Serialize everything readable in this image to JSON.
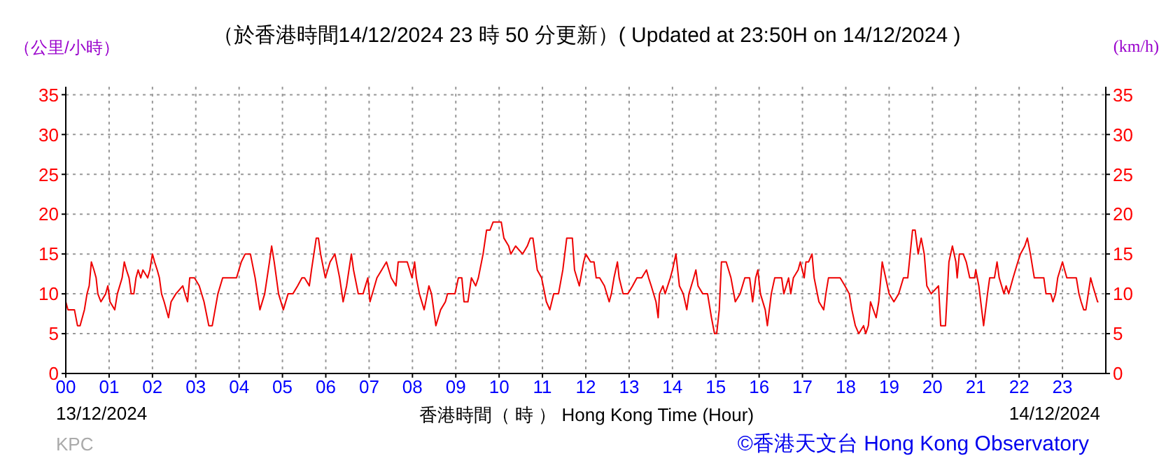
{
  "chart_data": {
    "type": "line",
    "title": "（於香港時間14/12/2024 23 時 50 分更新）( Updated at 23:50H on 14/12/2024 )",
    "ylabel": "（公里/小時）",
    "y2label": "(km/h)",
    "xlabel": "香港時間（ 時 ） Hong Kong Time (Hour)",
    "annotations": [
      "13/12/2024",
      "14/12/2024",
      "KPC",
      "©香港天文台 Hong Kong Observatory"
    ],
    "x": [
      0,
      0.05,
      0.2,
      0.27,
      0.33,
      0.43,
      0.49,
      0.54,
      0.59,
      0.65,
      0.7,
      0.74,
      0.81,
      0.92,
      0.97,
      1.02,
      1.13,
      1.19,
      1.3,
      1.35,
      1.4,
      1.46,
      1.51,
      1.57,
      1.62,
      1.67,
      1.73,
      1.78,
      1.89,
      1.94,
      2.0,
      2.05,
      2.11,
      2.16,
      2.21,
      2.27,
      2.37,
      2.43,
      2.54,
      2.7,
      2.75,
      2.81,
      2.86,
      2.97,
      3.08,
      3.19,
      3.3,
      3.38,
      3.51,
      3.62,
      3.78,
      3.94,
      4.05,
      4.14,
      4.26,
      4.37,
      4.48,
      4.59,
      4.7,
      4.75,
      4.81,
      4.91,
      5.02,
      5.13,
      5.24,
      5.35,
      5.45,
      5.51,
      5.62,
      5.67,
      5.78,
      5.83,
      5.88,
      5.99,
      6.1,
      6.21,
      6.32,
      6.4,
      6.48,
      6.59,
      6.64,
      6.75,
      6.86,
      6.97,
      7.02,
      7.18,
      7.29,
      7.4,
      7.51,
      7.62,
      7.67,
      7.88,
      7.99,
      8.05,
      8.09,
      8.16,
      8.27,
      8.38,
      8.44,
      8.54,
      8.65,
      8.76,
      8.81,
      8.98,
      9.06,
      9.14,
      9.19,
      9.28,
      9.36,
      9.46,
      9.52,
      9.63,
      9.71,
      9.79,
      9.86,
      10.05,
      10.11,
      10.22,
      10.27,
      10.38,
      10.54,
      10.65,
      10.72,
      10.78,
      10.88,
      10.98,
      11.09,
      11.17,
      11.26,
      11.37,
      11.47,
      11.56,
      11.69,
      11.74,
      11.85,
      11.95,
      12.0,
      12.11,
      12.19,
      12.24,
      12.32,
      12.43,
      12.54,
      12.59,
      12.65,
      12.73,
      12.77,
      12.86,
      12.97,
      13.08,
      13.18,
      13.29,
      13.4,
      13.45,
      13.51,
      13.62,
      13.67,
      13.7,
      13.78,
      13.83,
      13.95,
      14.0,
      14.08,
      14.16,
      14.25,
      14.33,
      14.38,
      14.49,
      14.54,
      14.59,
      14.7,
      14.81,
      14.9,
      14.97,
      15.02,
      15.08,
      15.13,
      15.24,
      15.35,
      15.45,
      15.56,
      15.67,
      15.78,
      15.85,
      15.92,
      15.97,
      16.03,
      16.14,
      16.19,
      16.28,
      16.36,
      16.52,
      16.57,
      16.68,
      16.73,
      16.79,
      16.9,
      16.95,
      17.04,
      17.08,
      17.14,
      17.22,
      17.27,
      17.38,
      17.49,
      17.54,
      17.6,
      17.87,
      17.98,
      18.08,
      18.14,
      18.22,
      18.3,
      18.41,
      18.46,
      18.52,
      18.57,
      18.7,
      18.76,
      18.84,
      18.92,
      19.0,
      19.11,
      19.22,
      19.33,
      19.43,
      19.54,
      19.6,
      19.67,
      19.74,
      19.81,
      19.87,
      19.97,
      20.14,
      20.19,
      20.3,
      20.38,
      20.46,
      20.54,
      20.57,
      20.62,
      20.71,
      20.78,
      20.86,
      20.97,
      21.0,
      21.07,
      21.18,
      21.27,
      21.32,
      21.43,
      21.49,
      21.54,
      21.65,
      21.7,
      21.76,
      21.86,
      21.97,
      22.03,
      22.13,
      22.19,
      22.26,
      22.35,
      22.57,
      22.62,
      22.73,
      22.78,
      22.84,
      22.89,
      23.0,
      23.05,
      23.1,
      23.32,
      23.38,
      23.43,
      23.49,
      23.54,
      23.65,
      23.7,
      23.81,
      23.83
    ],
    "series": [
      {
        "color": "#ee0000",
        "values": [
          9,
          8,
          8,
          6,
          6,
          8,
          10,
          11,
          14,
          13,
          12,
          10,
          9,
          10,
          11,
          9,
          8,
          10,
          12,
          14,
          13,
          12,
          10,
          10,
          12,
          13,
          12,
          13,
          12,
          13,
          15,
          14,
          13,
          12,
          10,
          9,
          7,
          9,
          10,
          11,
          10,
          9,
          12,
          12,
          11,
          9,
          6,
          6,
          10,
          12,
          12,
          12,
          14,
          15,
          15,
          12,
          8,
          10,
          14,
          16,
          14,
          10,
          8,
          10,
          10,
          11,
          12,
          12,
          11,
          13,
          17,
          17,
          15,
          12,
          14,
          15,
          12,
          9,
          11,
          15,
          13,
          10,
          10,
          12,
          9,
          12,
          13,
          14,
          12,
          11,
          14,
          14,
          12,
          14,
          12,
          10,
          8,
          11,
          10,
          6,
          8,
          9,
          10,
          10,
          12,
          12,
          9,
          9,
          12,
          11,
          12,
          15,
          18,
          18,
          19,
          19,
          17,
          16,
          15,
          16,
          15,
          16,
          17,
          17,
          13,
          12,
          9,
          8,
          10,
          10,
          13,
          17,
          17,
          13,
          11,
          14,
          15,
          14,
          14,
          12,
          12,
          11,
          9,
          10,
          12,
          14,
          12,
          10,
          10,
          11,
          12,
          12,
          13,
          12,
          11,
          9,
          7,
          10,
          11,
          10,
          12,
          13,
          15,
          11,
          10,
          8,
          10,
          12,
          13,
          11,
          10,
          10,
          7,
          5,
          5,
          8,
          14,
          14,
          12,
          9,
          10,
          12,
          12,
          9,
          12,
          13,
          10,
          8,
          6,
          10,
          12,
          12,
          10,
          12,
          10,
          12,
          13,
          14,
          12,
          14,
          14,
          15,
          12,
          9,
          8,
          10,
          12,
          12,
          11,
          10,
          8,
          6,
          5,
          6,
          5,
          6,
          9,
          7,
          9,
          14,
          12,
          10,
          9,
          10,
          12,
          12,
          18,
          18,
          15,
          17,
          15,
          11,
          10,
          11,
          6,
          6,
          14,
          16,
          14,
          12,
          15,
          15,
          14,
          12,
          12,
          13,
          11,
          6,
          10,
          12,
          12,
          14,
          12,
          10,
          11,
          10,
          12,
          14,
          15,
          16,
          17,
          15,
          12,
          12,
          10,
          10,
          9,
          10,
          12,
          14,
          13,
          12,
          12,
          10,
          9,
          8,
          8,
          12,
          11,
          9,
          9
        ]
      }
    ],
    "xlim": [
      0,
      24
    ],
    "xticks": [
      {
        "value": 0,
        "label": "00"
      },
      {
        "value": 1,
        "label": "01"
      },
      {
        "value": 2,
        "label": "02"
      },
      {
        "value": 3,
        "label": "03"
      },
      {
        "value": 4,
        "label": "04"
      },
      {
        "value": 5,
        "label": "05"
      },
      {
        "value": 6,
        "label": "06"
      },
      {
        "value": 7,
        "label": "07"
      },
      {
        "value": 8,
        "label": "08"
      },
      {
        "value": 9,
        "label": "09"
      },
      {
        "value": 10,
        "label": "10"
      },
      {
        "value": 11,
        "label": "11"
      },
      {
        "value": 12,
        "label": "12"
      },
      {
        "value": 13,
        "label": "13"
      },
      {
        "value": 14,
        "label": "14"
      },
      {
        "value": 15,
        "label": "15"
      },
      {
        "value": 16,
        "label": "16"
      },
      {
        "value": 17,
        "label": "17"
      },
      {
        "value": 18,
        "label": "18"
      },
      {
        "value": 19,
        "label": "19"
      },
      {
        "value": 20,
        "label": "20"
      },
      {
        "value": 21,
        "label": "21"
      },
      {
        "value": 22,
        "label": "22"
      },
      {
        "value": 23,
        "label": "23"
      }
    ],
    "ylim": [
      0,
      36
    ],
    "yticks": [
      0,
      5,
      10,
      15,
      20,
      25,
      30,
      35
    ],
    "y2lim": [
      0,
      36
    ],
    "y2ticks": [
      0,
      5,
      10,
      15,
      20,
      25,
      30,
      35
    ],
    "grid": true
  }
}
